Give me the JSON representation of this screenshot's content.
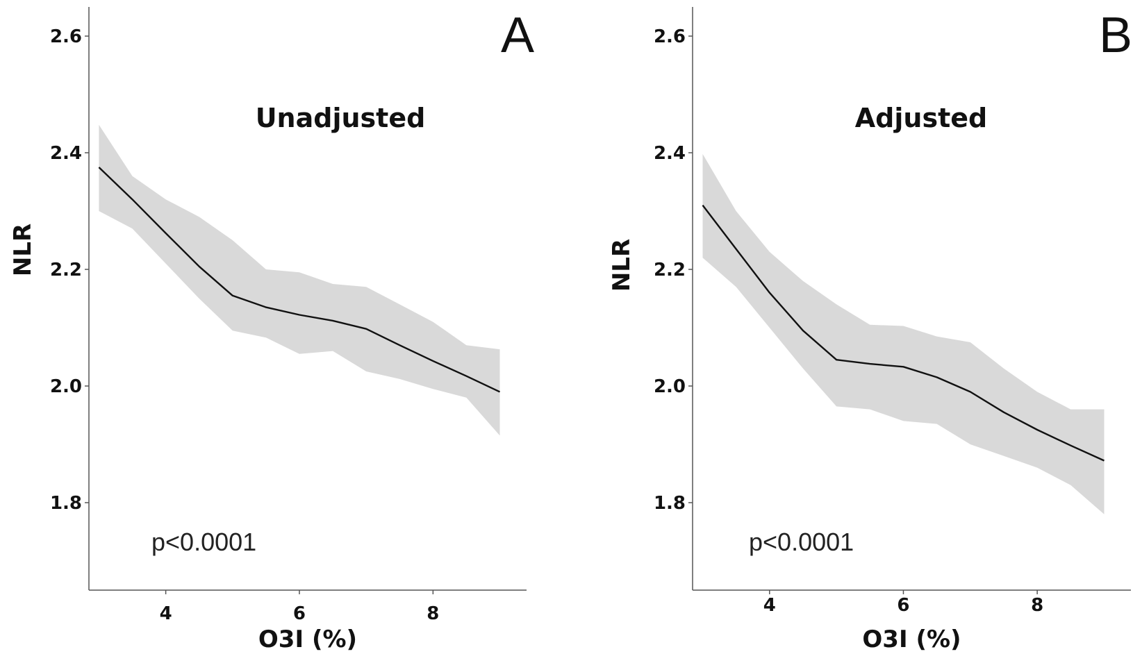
{
  "chart_data": [
    {
      "type": "line",
      "panel_letter": "A",
      "title": "Unadjusted",
      "xlabel": "O3I (%)",
      "ylabel": "NLR",
      "annotation": "p<0.0001",
      "xlim": [
        2.85,
        9.4
      ],
      "ylim": [
        1.65,
        2.65
      ],
      "xticks": [
        4,
        6,
        8
      ],
      "yticks": [
        1.8,
        2.0,
        2.2,
        2.4,
        2.6
      ],
      "xtick_labels": [
        "4",
        "6",
        "8"
      ],
      "ytick_labels": [
        "1.8",
        "2.0",
        "2.2",
        "2.4",
        "2.6"
      ],
      "grid": false,
      "colors": {
        "line": "#111111",
        "band": "#d9d9d9"
      },
      "series": [
        {
          "x": [
            3.0,
            3.5,
            4.0,
            4.5,
            5.0,
            5.5,
            6.0,
            6.5,
            7.0,
            7.5,
            8.0,
            8.5,
            9.0
          ],
          "values": [
            2.375,
            2.32,
            2.262,
            2.205,
            2.155,
            2.135,
            2.122,
            2.112,
            2.098,
            2.07,
            2.043,
            2.017,
            1.99
          ],
          "lower": [
            2.3,
            2.27,
            2.21,
            2.15,
            2.095,
            2.083,
            2.055,
            2.06,
            2.025,
            2.012,
            1.995,
            1.98,
            1.915
          ],
          "upper": [
            2.448,
            2.36,
            2.32,
            2.29,
            2.25,
            2.2,
            2.195,
            2.175,
            2.17,
            2.14,
            2.11,
            2.07,
            2.063
          ]
        }
      ]
    },
    {
      "type": "line",
      "panel_letter": "B",
      "title": "Adjusted",
      "xlabel": "O3I (%)",
      "ylabel": "NLR",
      "annotation": "p<0.0001",
      "xlim": [
        2.85,
        9.4
      ],
      "ylim": [
        1.65,
        2.65
      ],
      "xticks": [
        4,
        6,
        8
      ],
      "yticks": [
        1.8,
        2.0,
        2.2,
        2.4,
        2.6
      ],
      "xtick_labels": [
        "4",
        "6",
        "8"
      ],
      "ytick_labels": [
        "1.8",
        "2.0",
        "2.2",
        "2.4",
        "2.6"
      ],
      "grid": false,
      "colors": {
        "line": "#111111",
        "band": "#d9d9d9"
      },
      "series": [
        {
          "x": [
            3.0,
            3.5,
            4.0,
            4.5,
            5.0,
            5.5,
            6.0,
            6.5,
            7.0,
            7.5,
            8.0,
            8.5,
            9.0
          ],
          "values": [
            2.31,
            2.235,
            2.16,
            2.095,
            2.045,
            2.038,
            2.033,
            2.015,
            1.99,
            1.955,
            1.925,
            1.898,
            1.872
          ],
          "lower": [
            2.22,
            2.17,
            2.1,
            2.03,
            1.965,
            1.96,
            1.94,
            1.935,
            1.9,
            1.88,
            1.86,
            1.83,
            1.78
          ],
          "upper": [
            2.398,
            2.3,
            2.23,
            2.18,
            2.14,
            2.105,
            2.103,
            2.085,
            2.075,
            2.03,
            1.99,
            1.96,
            1.96
          ]
        }
      ]
    }
  ]
}
